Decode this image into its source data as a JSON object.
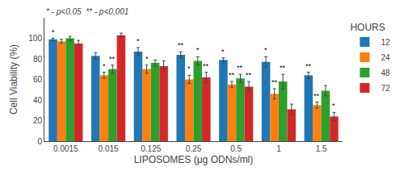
{
  "chart_data": {
    "type": "bar",
    "categories": [
      "0.0015",
      "0.015",
      "0.125",
      "0.25",
      "0.5",
      "1",
      "1.5"
    ],
    "series": [
      {
        "name": "12",
        "values": [
          99,
          83,
          87,
          84,
          79,
          77,
          64
        ],
        "errors": [
          1,
          3,
          4,
          3,
          2,
          5,
          3
        ],
        "significance": [
          "*",
          null,
          "*",
          "**",
          "*",
          "*",
          "**"
        ]
      },
      {
        "name": "24",
        "values": [
          97,
          64,
          70,
          60,
          55,
          46,
          35
        ],
        "errors": [
          2,
          3,
          4,
          4,
          3,
          5,
          3
        ],
        "significance": [
          null,
          "*",
          "*",
          "*",
          "**",
          "**",
          "**"
        ]
      },
      {
        "name": "48",
        "values": [
          100,
          70,
          76,
          78,
          61,
          58,
          49
        ],
        "errors": [
          2,
          4,
          3,
          4,
          4,
          7,
          5
        ],
        "significance": [
          null,
          "**",
          null,
          "*",
          "**",
          "**",
          null
        ]
      },
      {
        "name": "72",
        "values": [
          95,
          103,
          73,
          62,
          53,
          31,
          24
        ],
        "errors": [
          3,
          2,
          5,
          5,
          5,
          5,
          4
        ],
        "significance": [
          null,
          null,
          null,
          "**",
          "**",
          null,
          "*"
        ]
      }
    ],
    "xlabel": "LIPOSOMES (μg ODNs/ml)",
    "ylabel": "Cell Viability (%)",
    "ylim": [
      0,
      120
    ],
    "yticks": [
      0,
      20,
      40,
      60,
      80,
      100
    ],
    "annotation": "* - p<0.05  ** - p<0.001",
    "legend_title": "HOURS",
    "legend": "upper right",
    "grid": false
  }
}
